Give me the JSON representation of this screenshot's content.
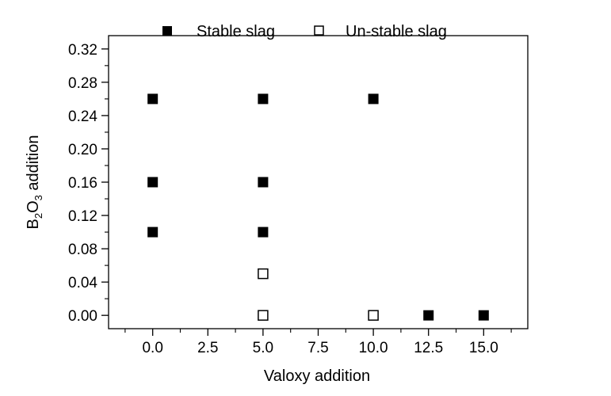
{
  "chart_data": {
    "type": "scatter",
    "xlabel": "Valoxy addition",
    "ylabel": {
      "prefix": "B",
      "sub1": "2",
      "mid": "O",
      "sub2": "3",
      "suffix": " addition"
    },
    "xlim": [
      -2,
      17
    ],
    "ylim": [
      -0.016,
      0.336
    ],
    "xticks": [
      "0.0",
      "2.5",
      "5.0",
      "7.5",
      "10.0",
      "12.5",
      "15.0"
    ],
    "xtick_values": [
      0,
      2.5,
      5,
      7.5,
      10,
      12.5,
      15
    ],
    "yticks": [
      "0.00",
      "0.04",
      "0.08",
      "0.12",
      "0.16",
      "0.20",
      "0.24",
      "0.28",
      "0.32"
    ],
    "ytick_values": [
      0,
      0.04,
      0.08,
      0.12,
      0.16,
      0.2,
      0.24,
      0.28,
      0.32
    ],
    "legend_position": "top",
    "grid": false,
    "series": [
      {
        "name": "Stable slag",
        "marker": "filled-square",
        "color": "#000000",
        "points": [
          {
            "x": 0,
            "y": 0.26
          },
          {
            "x": 0,
            "y": 0.16
          },
          {
            "x": 0,
            "y": 0.1
          },
          {
            "x": 5,
            "y": 0.26
          },
          {
            "x": 5,
            "y": 0.16
          },
          {
            "x": 5,
            "y": 0.1
          },
          {
            "x": 10,
            "y": 0.26
          },
          {
            "x": 12.5,
            "y": 0.0
          },
          {
            "x": 15,
            "y": 0.0
          }
        ]
      },
      {
        "name": "Un-stable slag",
        "marker": "open-square",
        "color": "#000000",
        "points": [
          {
            "x": 5,
            "y": 0.05
          },
          {
            "x": 5,
            "y": 0.0
          },
          {
            "x": 10,
            "y": 0.0
          }
        ]
      }
    ]
  }
}
